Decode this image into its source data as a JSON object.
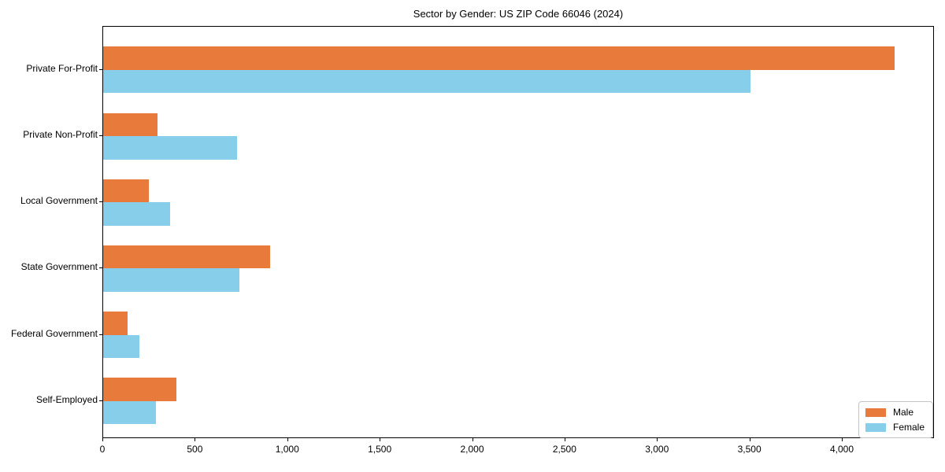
{
  "chart_data": {
    "type": "bar",
    "orientation": "horizontal",
    "title": "Sector by Gender: US ZIP Code 66046 (2024)",
    "categories": [
      "Private For-Profit",
      "Private Non-Profit",
      "Local Government",
      "State Government",
      "Federal Government",
      "Self-Employed"
    ],
    "series": [
      {
        "name": "Male",
        "color": "#e87a3c",
        "values": [
          4280,
          295,
          245,
          905,
          130,
          395
        ]
      },
      {
        "name": "Female",
        "color": "#87ceeb",
        "values": [
          3500,
          725,
          360,
          735,
          195,
          285
        ]
      }
    ],
    "xlabel": "",
    "ylabel": "",
    "xlim": [
      0,
      4494
    ],
    "xticks": [
      0,
      500,
      1000,
      1500,
      2000,
      2500,
      3000,
      3500,
      4000
    ],
    "xticklabels": [
      "0",
      "500",
      "1,000",
      "1,500",
      "2,000",
      "2,500",
      "3,000",
      "3,500",
      "4,000"
    ],
    "grid": false,
    "legend": {
      "position": "lower right",
      "entries": [
        "Male",
        "Female"
      ]
    },
    "colors": {
      "male": "#e87a3c",
      "female": "#87ceeb",
      "spine": "#000000",
      "background": "#ffffff"
    }
  }
}
